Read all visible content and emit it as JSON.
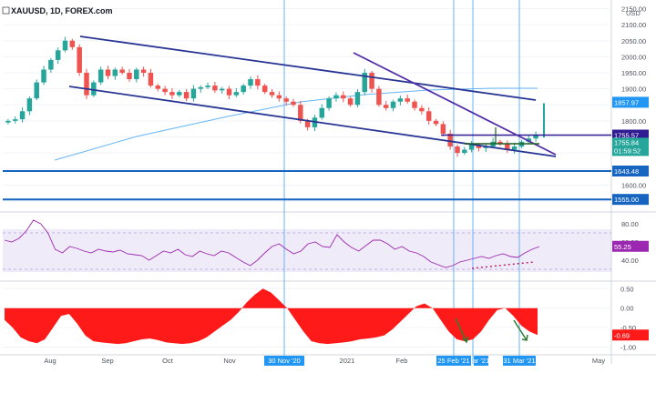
{
  "chart_data": [
    {
      "type": "candlestick",
      "title": "XAUUSD, 1D, FOREX.com",
      "currency": "USD",
      "y_ticks": [
        "2150.00",
        "2100.00",
        "2050.00",
        "2000.00",
        "1950.00",
        "1900.00",
        "1850.00",
        "1800.00",
        "1750.00",
        "1700.00",
        "1650.00",
        "1600.00",
        "1550.00"
      ],
      "ylim": [
        1530,
        2160
      ],
      "last_price": "1755.84",
      "countdown": "01:59:52",
      "price_labels": [
        {
          "value": "1857.97",
          "color": "#2196f3"
        },
        {
          "value": "1755.57",
          "color": "#311b92"
        },
        {
          "value": "1643.48",
          "color": "#1565c0"
        },
        {
          "value": "1555.00",
          "color": "#1565c0"
        }
      ],
      "horizontal_levels": [
        {
          "value": 1643.48,
          "color": "#1565c0"
        },
        {
          "value": 1555.0,
          "color": "#1565c0"
        },
        {
          "value": 1755.57,
          "color": "#311b92"
        }
      ],
      "moving_average_end": 1857.97,
      "closes": [
        1800,
        1805,
        1830,
        1870,
        1920,
        1960,
        1990,
        2020,
        2050,
        2030,
        1950,
        1880,
        1920,
        1960,
        1940,
        1960,
        1950,
        1930,
        1960,
        1950,
        1910,
        1900,
        1890,
        1880,
        1890,
        1870,
        1900,
        1905,
        1910,
        1895,
        1900,
        1880,
        1890,
        1910,
        1930,
        1910,
        1890,
        1880,
        1870,
        1860,
        1850,
        1800,
        1780,
        1810,
        1840,
        1870,
        1880,
        1870,
        1850,
        1890,
        1950,
        1900,
        1850,
        1840,
        1860,
        1870,
        1860,
        1840,
        1830,
        1800,
        1790,
        1760,
        1720,
        1700,
        1710,
        1725,
        1715,
        1720,
        1735,
        1730,
        1710,
        1720,
        1735,
        1745,
        1755
      ]
    },
    {
      "type": "line",
      "name": "RSI",
      "y_ticks": [
        "80.00",
        "60.00",
        "40.00"
      ],
      "ylim": [
        20,
        90
      ],
      "band": [
        30,
        70
      ],
      "last_value": "55.25",
      "values": [
        62,
        60,
        64,
        72,
        84,
        80,
        70,
        52,
        48,
        55,
        53,
        50,
        48,
        52,
        50,
        49,
        51,
        47,
        46,
        45,
        40,
        45,
        50,
        48,
        52,
        46,
        44,
        50,
        47,
        45,
        50,
        48,
        43,
        38,
        34,
        40,
        48,
        55,
        58,
        52,
        47,
        50,
        58,
        60,
        55,
        54,
        68,
        60,
        54,
        50,
        56,
        62,
        62,
        58,
        52,
        55,
        50,
        48,
        44,
        38,
        35,
        32,
        34,
        38,
        40,
        42,
        44,
        42,
        45,
        47,
        44,
        43,
        48,
        52,
        55
      ]
    },
    {
      "type": "area",
      "name": "Oscillator",
      "y_ticks": [
        "0.50",
        "0.00",
        "-0.50",
        "-1.00"
      ],
      "ylim": [
        -1.15,
        0.6
      ],
      "last_value": "-0.69",
      "values": [
        -0.3,
        -0.5,
        -0.75,
        -0.85,
        -0.9,
        -0.8,
        -0.5,
        -0.2,
        -0.15,
        -0.4,
        -0.7,
        -0.85,
        -0.88,
        -0.9,
        -0.92,
        -0.9,
        -0.85,
        -0.8,
        -0.78,
        -0.82,
        -0.88,
        -0.9,
        -0.92,
        -0.9,
        -0.85,
        -0.75,
        -0.6,
        -0.45,
        -0.3,
        -0.1,
        0.15,
        0.35,
        0.5,
        0.4,
        0.2,
        0.0,
        -0.3,
        -0.6,
        -0.85,
        -0.9,
        -0.92,
        -0.9,
        -0.88,
        -0.85,
        -0.8,
        -0.78,
        -0.75,
        -0.7,
        -0.55,
        -0.35,
        -0.15,
        0.05,
        0.12,
        0.0,
        -0.3,
        -0.6,
        -0.8,
        -0.85,
        -0.8,
        -0.6,
        -0.3,
        -0.05,
        0.0,
        -0.2,
        -0.45,
        -0.6,
        -0.69
      ]
    }
  ],
  "date_axis": {
    "labels": [
      "Aug",
      "Sep",
      "Oct",
      "Nov",
      "2021",
      "Feb",
      "May"
    ],
    "highlighted": [
      "30 Nov '20",
      "25 Feb '21",
      "ar '21",
      "31 Mar '21"
    ]
  }
}
